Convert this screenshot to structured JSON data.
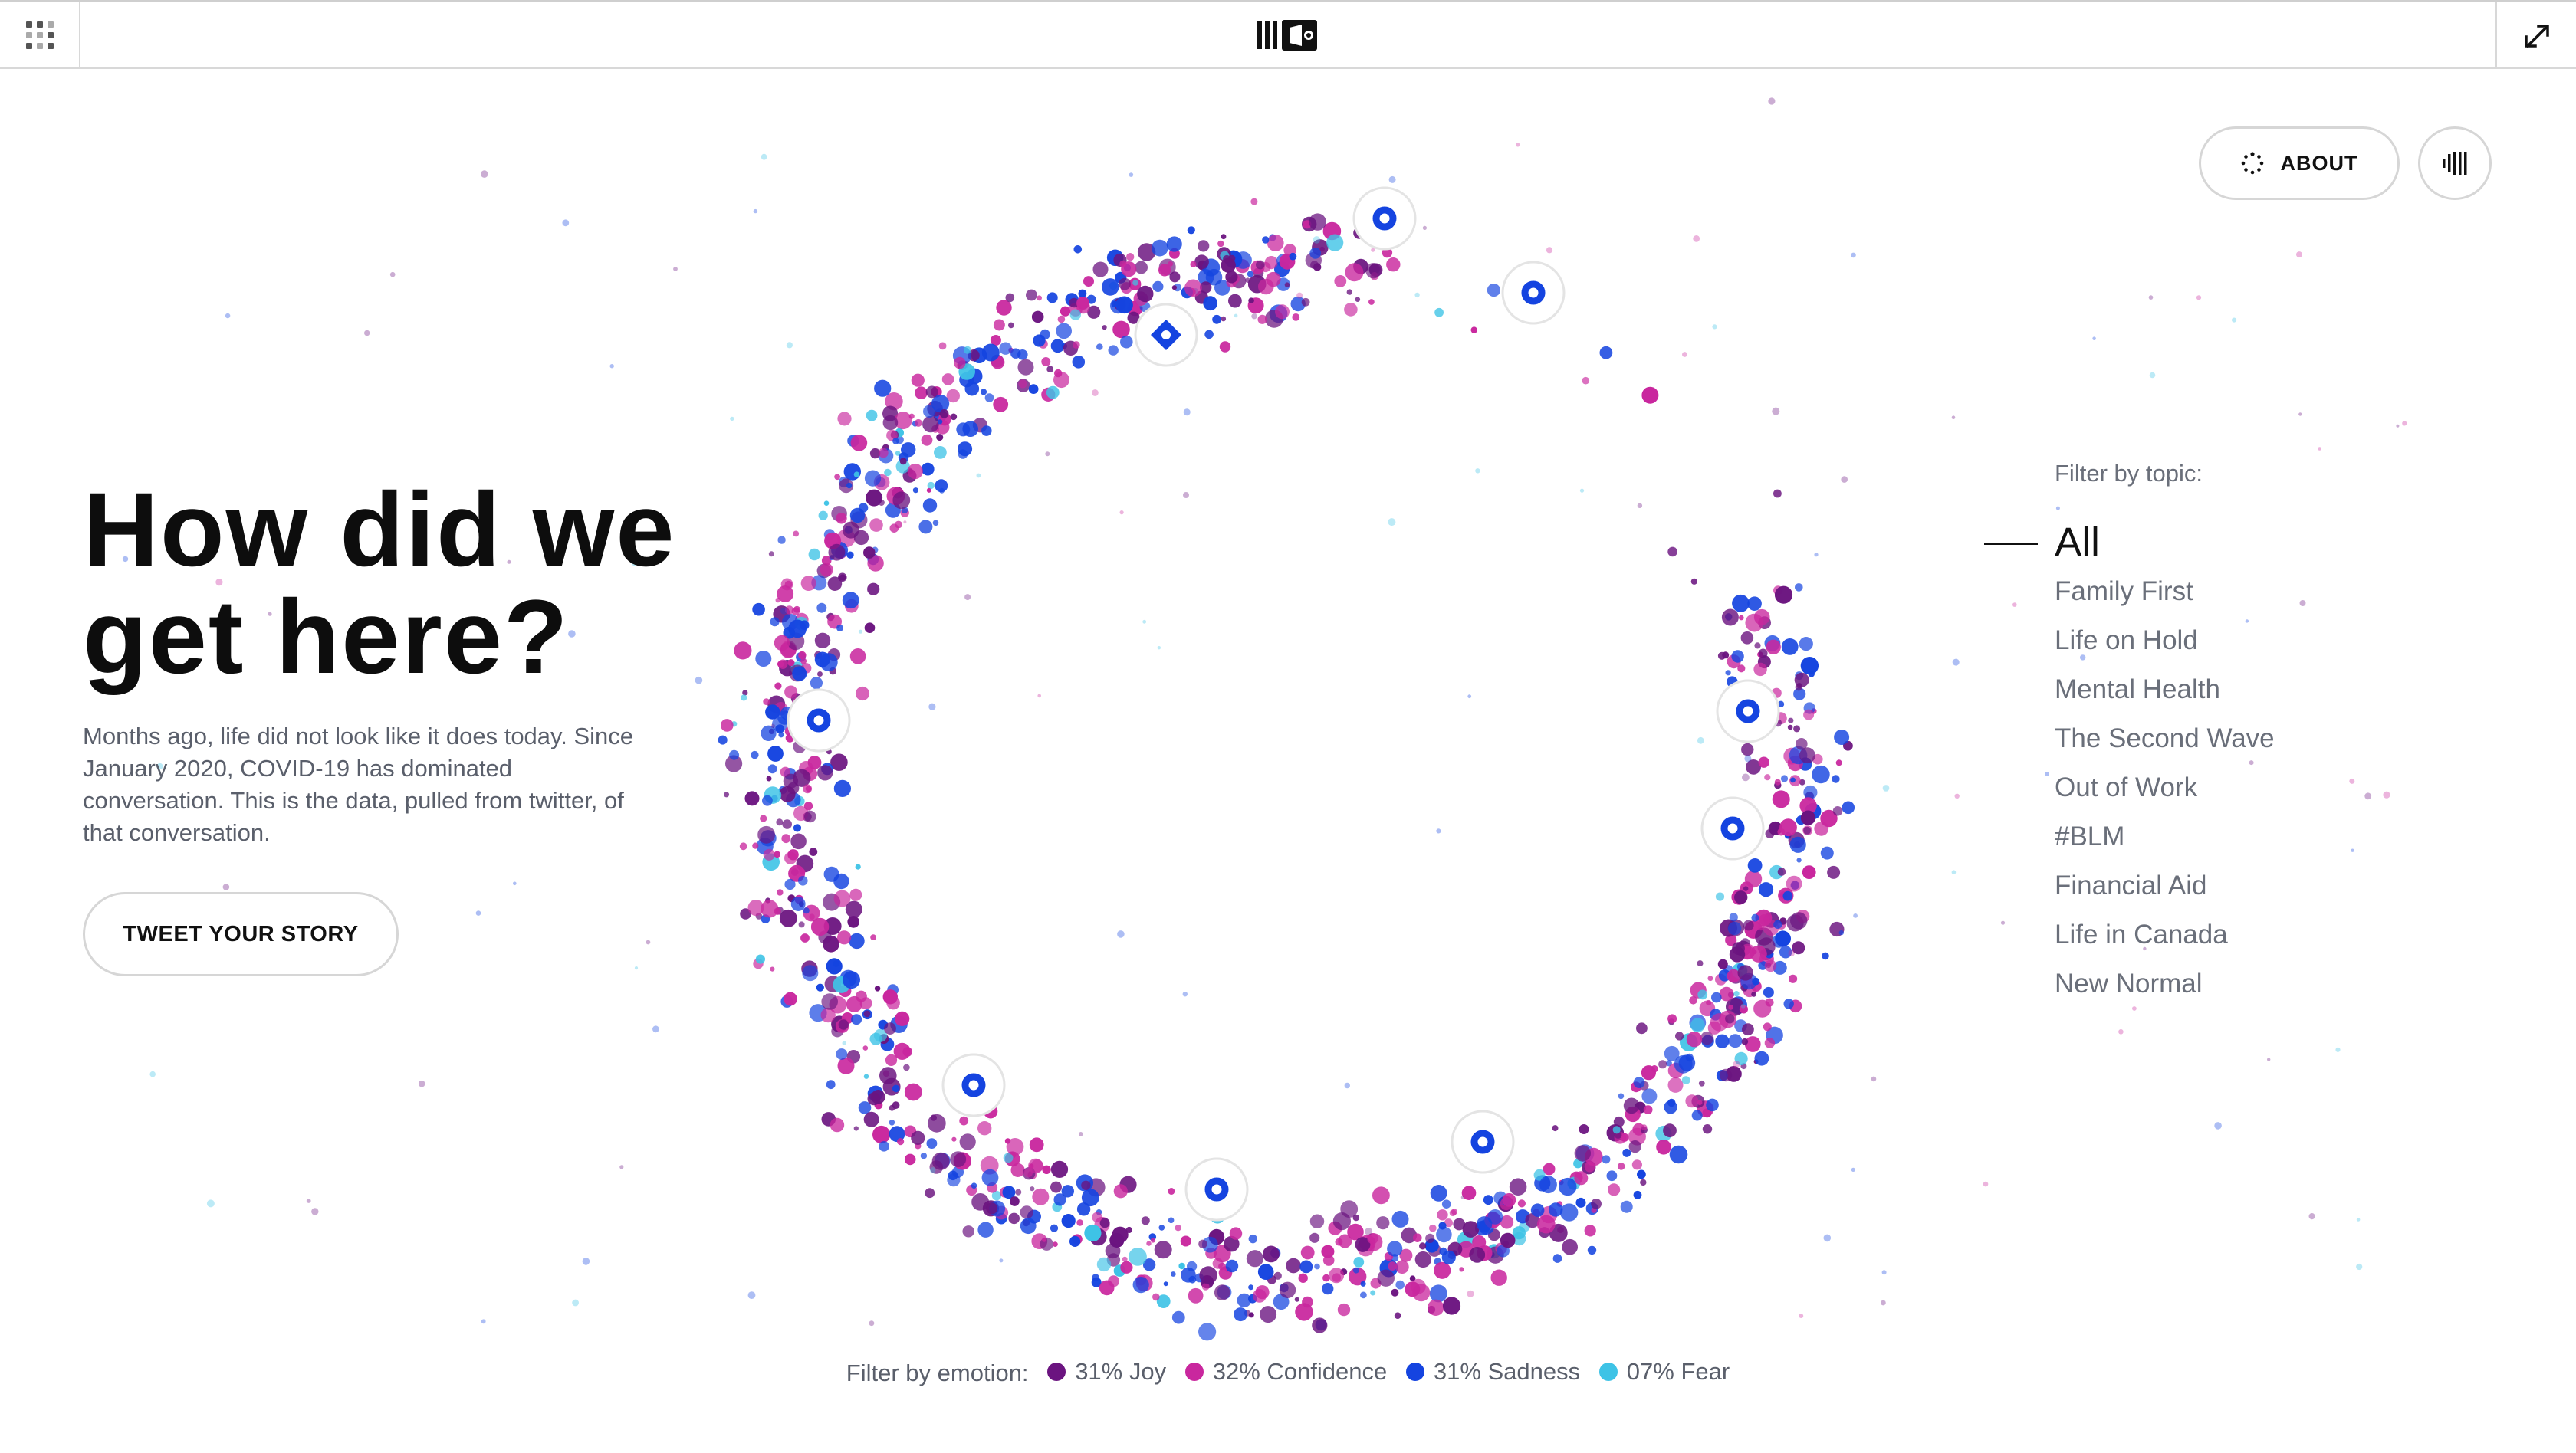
{
  "app": {
    "logo_icon": "nfb-onf-logo",
    "menu_icon": "grid-icon",
    "fullscreen_icon": "expand-icon"
  },
  "header": {
    "about_label": "ABOUT",
    "about_icon": "loading-dots-icon",
    "sound_icon": "sound-bars-icon"
  },
  "hero": {
    "title": "How did we get here?",
    "description": "Months ago, life did not look like it does today. Since January 2020, COVID-19 has dominated conversation. This is the data, pulled from twitter, of that conversation.",
    "cta_label": "TWEET YOUR STORY"
  },
  "topics": {
    "label": "Filter by topic:",
    "items": [
      "All",
      "Family First",
      "Life on Hold",
      "Mental Health",
      "The Second Wave",
      "Out of Work",
      "#BLM",
      "Financial Aid",
      "Life in Canada",
      "New Normal"
    ],
    "active": "All"
  },
  "emotions": {
    "label": "Filter by emotion:",
    "items": [
      {
        "label": "31% Joy",
        "color": "#6b1480"
      },
      {
        "label": "32% Confidence",
        "color": "#c9279e"
      },
      {
        "label": "31% Sadness",
        "color": "#1544e0"
      },
      {
        "label": "07% Fear",
        "color": "#3ec3e6"
      }
    ]
  },
  "visualization": {
    "colors": {
      "joy": "#6b1480",
      "confidence": "#c9279e",
      "sadness": "#1544e0",
      "fear": "#3ec3e6"
    },
    "marker_icon": "story-point-icon",
    "highlight_icon": "diamond-story-icon"
  }
}
